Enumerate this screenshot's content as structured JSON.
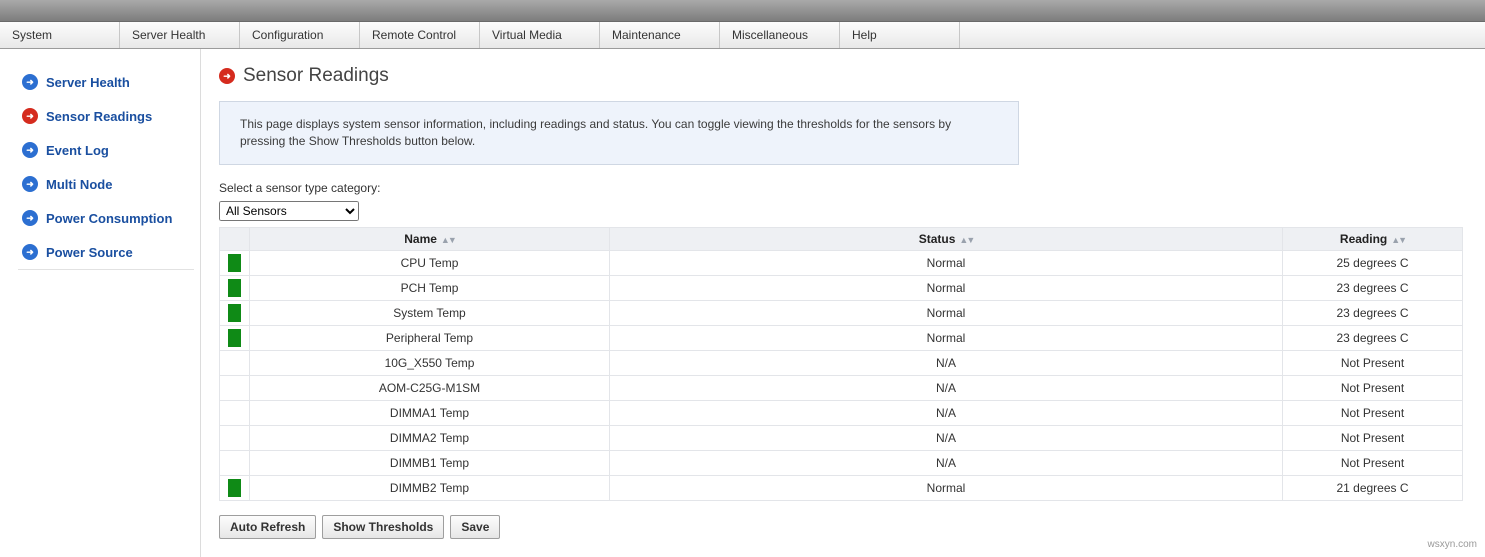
{
  "colors": {
    "status_ok": "#0f8a16",
    "status_none": "transparent",
    "accent_blue": "#2c6fd1",
    "accent_red": "#d52b1e"
  },
  "topmenu": [
    "System",
    "Server Health",
    "Configuration",
    "Remote Control",
    "Virtual Media",
    "Maintenance",
    "Miscellaneous",
    "Help"
  ],
  "sidebar": {
    "items": [
      {
        "label": "Server Health",
        "active": false
      },
      {
        "label": "Sensor Readings",
        "active": true
      },
      {
        "label": "Event Log",
        "active": false
      },
      {
        "label": "Multi Node",
        "active": false
      },
      {
        "label": "Power Consumption",
        "active": false
      },
      {
        "label": "Power Source",
        "active": false
      }
    ]
  },
  "page": {
    "title": "Sensor Readings",
    "info": "This page displays system sensor information, including readings and status. You can toggle viewing the thresholds for the sensors by pressing the Show Thresholds button below.",
    "category_label": "Select a sensor type category:",
    "category_selected": "All Sensors"
  },
  "table": {
    "columns": [
      "Name",
      "Status",
      "Reading"
    ],
    "col_align": [
      "center",
      "center",
      "center"
    ],
    "rows": [
      {
        "ok": true,
        "name": "CPU Temp",
        "status": "Normal",
        "reading": "25 degrees C"
      },
      {
        "ok": true,
        "name": "PCH Temp",
        "status": "Normal",
        "reading": "23 degrees C"
      },
      {
        "ok": true,
        "name": "System Temp",
        "status": "Normal",
        "reading": "23 degrees C"
      },
      {
        "ok": true,
        "name": "Peripheral Temp",
        "status": "Normal",
        "reading": "23 degrees C"
      },
      {
        "ok": false,
        "name": "10G_X550 Temp",
        "status": "N/A",
        "reading": "Not Present"
      },
      {
        "ok": false,
        "name": "AOM-C25G-M1SM",
        "status": "N/A",
        "reading": "Not Present"
      },
      {
        "ok": false,
        "name": "DIMMA1 Temp",
        "status": "N/A",
        "reading": "Not Present"
      },
      {
        "ok": false,
        "name": "DIMMA2 Temp",
        "status": "N/A",
        "reading": "Not Present"
      },
      {
        "ok": false,
        "name": "DIMMB1 Temp",
        "status": "N/A",
        "reading": "Not Present"
      },
      {
        "ok": true,
        "name": "DIMMB2 Temp",
        "status": "Normal",
        "reading": "21 degrees C"
      }
    ]
  },
  "buttons": {
    "auto_refresh": "Auto Refresh",
    "show_thresholds": "Show Thresholds",
    "save": "Save"
  },
  "watermark": "wsxyn.com"
}
